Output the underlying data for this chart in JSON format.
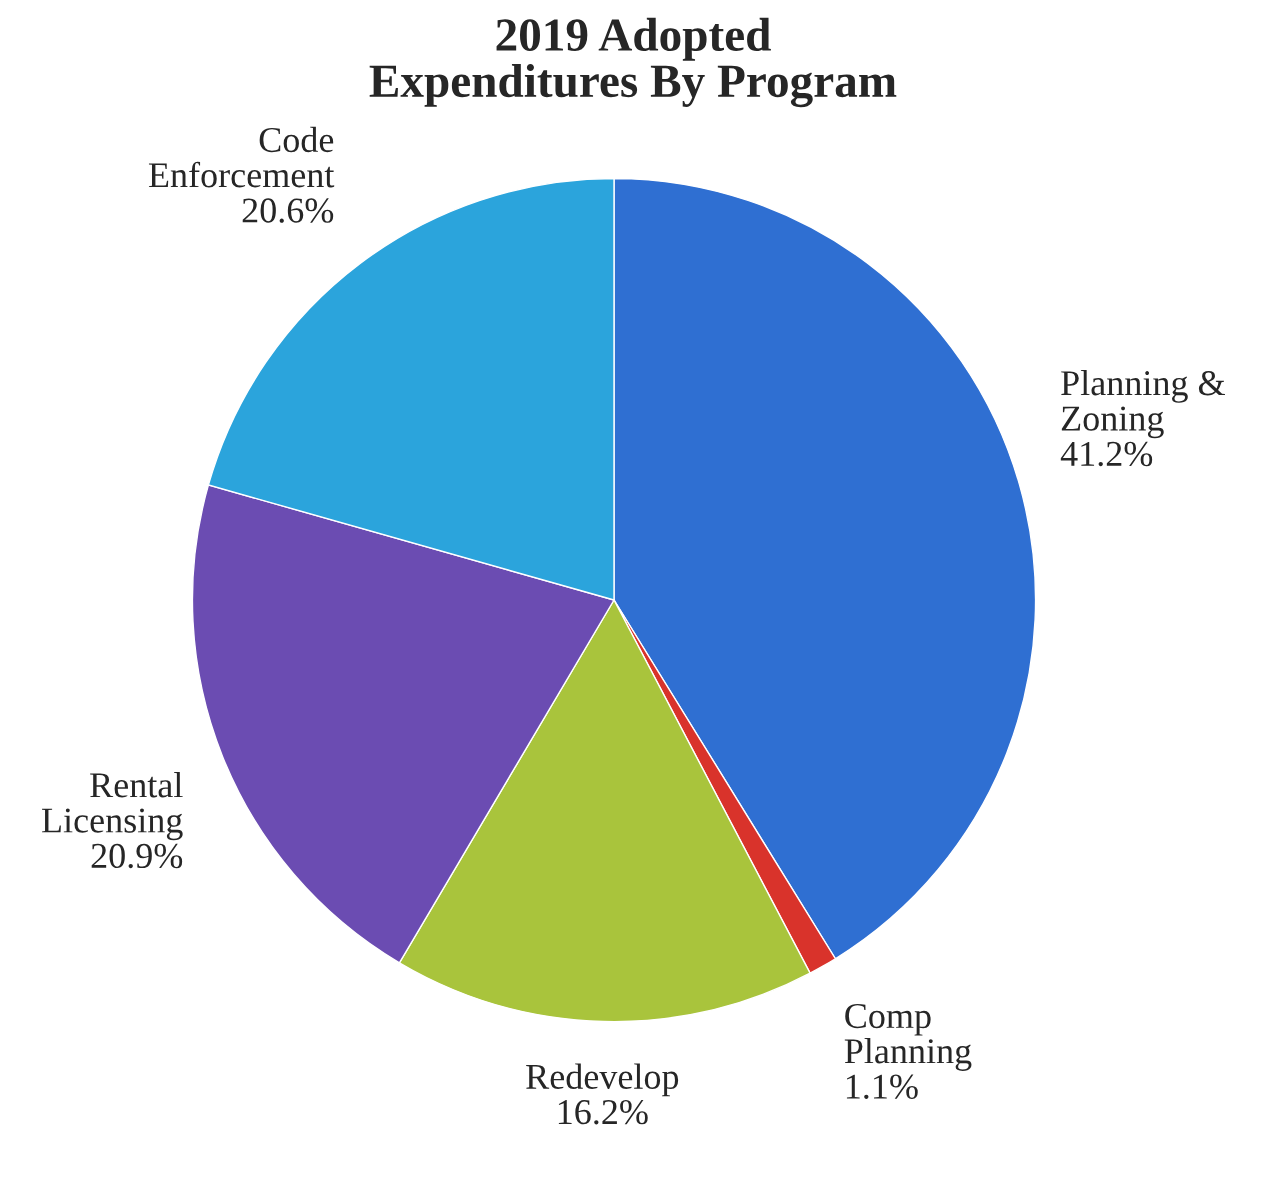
{
  "chart_data": {
    "type": "pie",
    "title": "2019 Adopted\nExpenditures By Program",
    "categories": [
      "Planning &\nZoning",
      "Comp\nPlanning",
      "Redevelop",
      "Rental\nLicensing",
      "Code\nEnforcement"
    ],
    "values": [
      41.2,
      1.1,
      16.2,
      20.9,
      20.6
    ],
    "value_labels": [
      "41.2%",
      "1.1%",
      "16.2%",
      "20.9%",
      "20.6%"
    ],
    "colors": [
      "#2f6fd2",
      "#d9332b",
      "#a9c43c",
      "#6b4cb2",
      "#2ba4dc"
    ]
  }
}
